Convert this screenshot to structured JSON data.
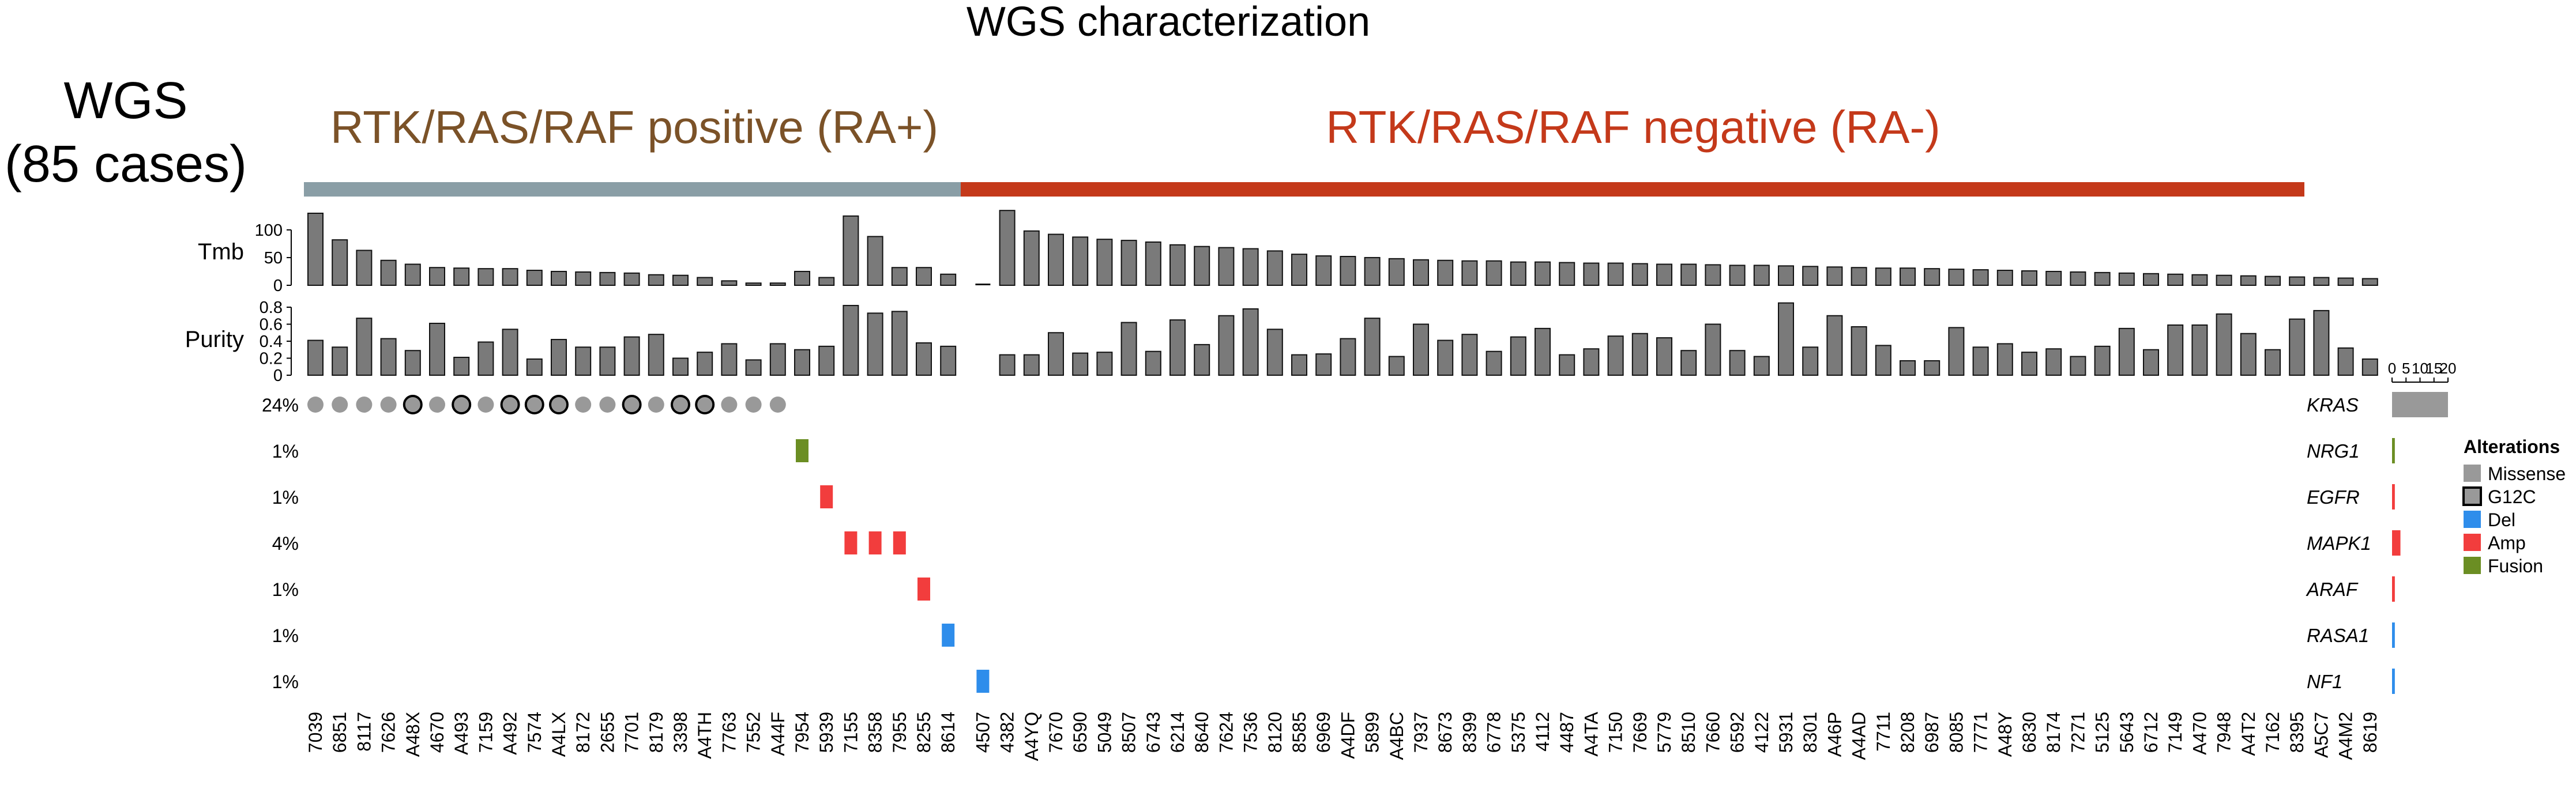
{
  "title": "WGS characterization",
  "cohort_label": {
    "line1": "WGS",
    "line2": "(85 cases)"
  },
  "groups": [
    {
      "label": "RTK/RAS/RAF positive (RA+)",
      "color": "#8A9EA6",
      "text_color": "#7B5228",
      "count": 27
    },
    {
      "label": "RTK/RAS/RAF negative (RA-)",
      "color": "#C4391A",
      "text_color": "#C4391A",
      "count": 58
    }
  ],
  "tracks": {
    "tmb_label": "Tmb",
    "purity_label": "Purity"
  },
  "legend": {
    "title": "Alterations",
    "items": [
      {
        "label": "Missense",
        "color": "#999999",
        "shape": "square"
      },
      {
        "label": "G12C",
        "color": "#999999",
        "shape": "outlined"
      },
      {
        "label": "Del",
        "color": "#2E8DEB",
        "shape": "square"
      },
      {
        "label": "Amp",
        "color": "#F23D3D",
        "shape": "square"
      },
      {
        "label": "Fusion",
        "color": "#6B8E23",
        "shape": "square"
      }
    ]
  },
  "colors": {
    "bar": "#7A7A7A",
    "missense": "#999999",
    "del": "#2E8DEB",
    "amp": "#F23D3D",
    "fusion": "#6B8E23"
  },
  "chart_data": {
    "type": "bar",
    "samples": [
      "7039",
      "6851",
      "8117",
      "7626",
      "A48X",
      "4670",
      "A493",
      "7159",
      "A492",
      "7574",
      "A4LX",
      "8172",
      "2655",
      "7701",
      "8179",
      "3398",
      "A4TH",
      "7763",
      "7552",
      "A44F",
      "7954",
      "5939",
      "7155",
      "8358",
      "7955",
      "8255",
      "8614",
      "4507",
      "4382",
      "A4YQ",
      "7670",
      "6590",
      "5049",
      "8507",
      "6743",
      "6214",
      "8640",
      "7624",
      "7536",
      "8120",
      "8585",
      "6969",
      "A4DF",
      "5899",
      "A4BC",
      "7937",
      "8673",
      "8399",
      "6778",
      "5375",
      "4112",
      "4487",
      "A4TA",
      "7150",
      "7669",
      "5779",
      "8510",
      "7660",
      "6592",
      "4122",
      "5931",
      "8301",
      "A46P",
      "A4AD",
      "7711",
      "8208",
      "6987",
      "8085",
      "7771",
      "A48Y",
      "6830",
      "8174",
      "7271",
      "5125",
      "5643",
      "6712",
      "7149",
      "A470",
      "7948",
      "A4T2",
      "7162",
      "8395",
      "A5C7",
      "A4M2",
      "8619"
    ],
    "tmb": {
      "ylim": [
        0,
        130
      ],
      "ticks": [
        "0",
        "50",
        "100"
      ],
      "values": [
        130,
        82,
        63,
        45,
        38,
        32,
        31,
        30,
        30,
        27,
        25,
        24,
        23,
        22,
        19,
        18,
        14,
        8,
        4,
        4,
        25,
        14,
        125,
        88,
        32,
        32,
        20,
        0,
        135,
        98,
        92,
        87,
        83,
        81,
        78,
        73,
        70,
        68,
        66,
        62,
        56,
        53,
        52,
        50,
        48,
        46,
        45,
        44,
        44,
        42,
        42,
        41,
        40,
        40,
        39,
        38,
        38,
        37,
        36,
        36,
        35,
        34,
        33,
        32,
        31,
        31,
        30,
        29,
        28,
        27,
        26,
        25,
        24,
        23,
        22,
        21,
        20,
        19,
        18,
        17,
        16,
        15,
        14,
        13,
        12
      ]
    },
    "purity": {
      "ylim": [
        0,
        0.8
      ],
      "ticks": [
        "0",
        "0.2",
        "0.4",
        "0.6",
        "0.8"
      ],
      "values": [
        0.41,
        0.33,
        0.67,
        0.43,
        0.29,
        0.61,
        0.21,
        0.39,
        0.54,
        0.19,
        0.42,
        0.33,
        0.33,
        0.45,
        0.48,
        0.2,
        0.27,
        0.37,
        0.18,
        0.37,
        0.3,
        0.34,
        0.82,
        0.73,
        0.75,
        0.38,
        0.34,
        0.0,
        0.24,
        0.24,
        0.5,
        0.26,
        0.27,
        0.62,
        0.28,
        0.65,
        0.36,
        0.7,
        0.78,
        0.54,
        0.24,
        0.25,
        0.43,
        0.67,
        0.22,
        0.6,
        0.41,
        0.48,
        0.28,
        0.45,
        0.55,
        0.24,
        0.31,
        0.46,
        0.49,
        0.44,
        0.29,
        0.6,
        0.29,
        0.22,
        0.85,
        0.33,
        0.7,
        0.57,
        0.35,
        0.17,
        0.17,
        0.56,
        0.33,
        0.37,
        0.27,
        0.31,
        0.22,
        0.34,
        0.55,
        0.3,
        0.59,
        0.59,
        0.72,
        0.49,
        0.3,
        0.66,
        0.76,
        0.32,
        0.19
      ]
    },
    "genes": [
      {
        "name": "KRAS",
        "pct": "24%",
        "count": 20,
        "alterations": [
          {
            "sample": "7039",
            "type": "Missense"
          },
          {
            "sample": "6851",
            "type": "Missense"
          },
          {
            "sample": "8117",
            "type": "Missense"
          },
          {
            "sample": "7626",
            "type": "Missense"
          },
          {
            "sample": "A48X",
            "type": "G12C"
          },
          {
            "sample": "4670",
            "type": "Missense"
          },
          {
            "sample": "A493",
            "type": "G12C"
          },
          {
            "sample": "7159",
            "type": "Missense"
          },
          {
            "sample": "A492",
            "type": "G12C"
          },
          {
            "sample": "7574",
            "type": "G12C"
          },
          {
            "sample": "A4LX",
            "type": "G12C"
          },
          {
            "sample": "8172",
            "type": "Missense"
          },
          {
            "sample": "2655",
            "type": "Missense"
          },
          {
            "sample": "7701",
            "type": "G12C"
          },
          {
            "sample": "8179",
            "type": "Missense"
          },
          {
            "sample": "3398",
            "type": "G12C"
          },
          {
            "sample": "A4TH",
            "type": "G12C"
          },
          {
            "sample": "7763",
            "type": "Missense"
          },
          {
            "sample": "7552",
            "type": "Missense"
          },
          {
            "sample": "A44F",
            "type": "Missense"
          }
        ]
      },
      {
        "name": "NRG1",
        "pct": "1%",
        "count": 1,
        "alterations": [
          {
            "sample": "7954",
            "type": "Fusion"
          }
        ]
      },
      {
        "name": "EGFR",
        "pct": "1%",
        "count": 1,
        "alterations": [
          {
            "sample": "5939",
            "type": "Amp"
          }
        ]
      },
      {
        "name": "MAPK1",
        "pct": "4%",
        "count": 3,
        "alterations": [
          {
            "sample": "7155",
            "type": "Amp"
          },
          {
            "sample": "8358",
            "type": "Amp"
          },
          {
            "sample": "7955",
            "type": "Amp"
          }
        ]
      },
      {
        "name": "ARAF",
        "pct": "1%",
        "count": 1,
        "alterations": [
          {
            "sample": "8255",
            "type": "Amp"
          }
        ]
      },
      {
        "name": "RASA1",
        "pct": "1%",
        "count": 1,
        "alterations": [
          {
            "sample": "8614",
            "type": "Del"
          }
        ]
      },
      {
        "name": "NF1",
        "pct": "1%",
        "count": 1,
        "alterations": [
          {
            "sample": "4507",
            "type": "Del"
          }
        ]
      }
    ],
    "count_axis": {
      "ticks": [
        "0",
        "5",
        "10",
        "15",
        "20"
      ],
      "max": 20
    }
  }
}
